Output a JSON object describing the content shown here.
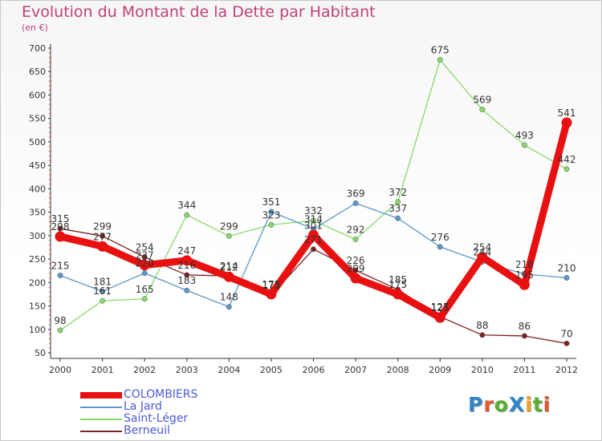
{
  "title": "Evolution du Montant de la Dette par Habitant",
  "subtitle": "(en €)",
  "logo": {
    "text": "ProXiti",
    "colors": [
      "#2e86c8",
      "#e4572e",
      "#5ab032",
      "#2e86c8",
      "#f2a01f",
      "#5ab032",
      "#e4572e"
    ]
  },
  "chart_data": {
    "type": "line",
    "x": [
      "2000",
      "2001",
      "2002",
      "2003",
      "2004",
      "2005",
      "2006",
      "2007",
      "2008",
      "2009",
      "2010",
      "2011",
      "2012"
    ],
    "ylim": [
      50,
      700
    ],
    "yticks": [
      "50",
      "100",
      "150",
      "200",
      "250",
      "300",
      "350",
      "400",
      "450",
      "500",
      "550",
      "600",
      "650",
      "700"
    ],
    "grid": false,
    "series": [
      {
        "name": "COLOMBIERS",
        "color": "#e81010",
        "values": [
          298,
          277,
          237,
          247,
          212,
          175,
          301,
          209,
          175,
          125,
          254,
          195,
          541
        ],
        "labels": [
          "298",
          "277",
          "237",
          "247",
          "212",
          "175",
          "301",
          "209",
          "175",
          "125",
          "254",
          "195",
          "541"
        ]
      },
      {
        "name": "La Jard",
        "color": "#5b97c8",
        "values": [
          215,
          181,
          220,
          183,
          148,
          351,
          314,
          369,
          337,
          276,
          244,
          218,
          210
        ],
        "labels": [
          "215",
          "181",
          "220",
          "183",
          "148",
          "351",
          "314",
          "369",
          "337",
          "276",
          "244",
          "218",
          "210"
        ]
      },
      {
        "name": "Saint-Léger",
        "color": "#88d86a",
        "values": [
          98,
          161,
          165,
          344,
          299,
          323,
          332,
          292,
          372,
          675,
          569,
          493,
          442
        ],
        "labels": [
          "98",
          "161",
          "165",
          "344",
          "299",
          "323",
          "332",
          "292",
          "372",
          "675",
          "569",
          "493",
          "442"
        ]
      },
      {
        "name": "Berneuil",
        "color": "#7a2424",
        "values": [
          315,
          299,
          254,
          216,
          214,
          173,
          271,
          226,
          185,
          127,
          88,
          86,
          70
        ],
        "labels": [
          "315",
          "299",
          "254",
          "216",
          "214",
          "173",
          "271",
          "226",
          "185",
          "127",
          "88",
          "86",
          "70"
        ]
      }
    ]
  }
}
